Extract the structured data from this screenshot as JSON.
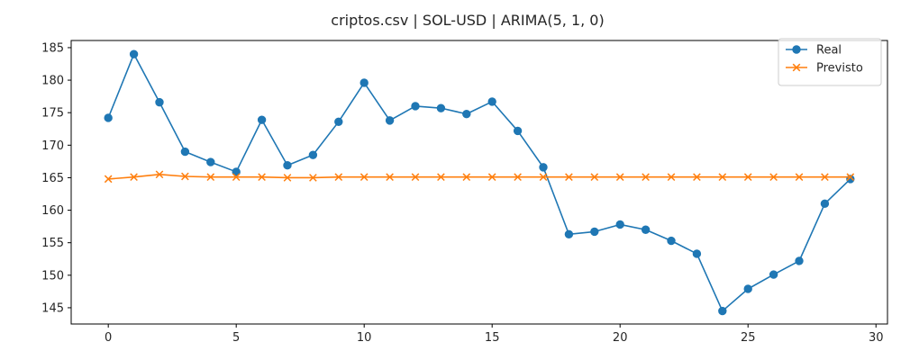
{
  "chart_data": {
    "type": "line",
    "title": "criptos.csv | SOL-USD | ARIMA(5, 1, 0)",
    "xlabel": "",
    "ylabel": "",
    "x": [
      0,
      1,
      2,
      3,
      4,
      5,
      6,
      7,
      8,
      9,
      10,
      11,
      12,
      13,
      14,
      15,
      16,
      17,
      18,
      19,
      20,
      21,
      22,
      23,
      24,
      25,
      26,
      27,
      28,
      29
    ],
    "xlim": [
      -1.45,
      30.45
    ],
    "ylim": [
      142.5,
      186.1
    ],
    "xticks": [
      0,
      5,
      10,
      15,
      20,
      25,
      30
    ],
    "xtick_labels": [
      "0",
      "5",
      "10",
      "15",
      "20",
      "25",
      "30"
    ],
    "yticks": [
      145,
      150,
      155,
      160,
      165,
      170,
      175,
      180,
      185
    ],
    "ytick_labels": [
      "145",
      "150",
      "155",
      "160",
      "165",
      "170",
      "175",
      "180",
      "185"
    ],
    "grid": false,
    "legend_position": "top-right",
    "series": [
      {
        "name": "Real",
        "color": "#1f77b4",
        "marker": "circle",
        "values": [
          174.2,
          184.0,
          176.6,
          169.0,
          167.4,
          165.9,
          173.9,
          166.9,
          168.5,
          173.6,
          179.6,
          173.8,
          176.0,
          175.7,
          174.8,
          176.7,
          172.2,
          166.6,
          156.3,
          156.7,
          157.8,
          157.0,
          155.3,
          153.3,
          144.5,
          147.9,
          150.1,
          152.2,
          161.0,
          164.8
        ]
      },
      {
        "name": "Previsto",
        "color": "#ff7f0e",
        "marker": "x",
        "values": [
          164.8,
          165.1,
          165.5,
          165.2,
          165.1,
          165.1,
          165.1,
          165.0,
          165.0,
          165.1,
          165.1,
          165.1,
          165.1,
          165.1,
          165.1,
          165.1,
          165.1,
          165.1,
          165.1,
          165.1,
          165.1,
          165.1,
          165.1,
          165.1,
          165.1,
          165.1,
          165.1,
          165.1,
          165.1,
          165.1
        ]
      }
    ]
  }
}
